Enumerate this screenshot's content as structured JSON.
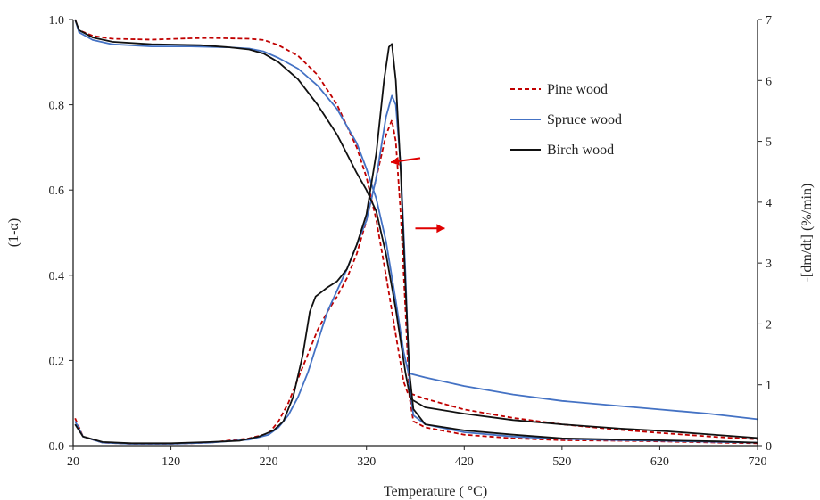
{
  "chart_data": {
    "type": "line",
    "title": "",
    "xlabel": "Temperature ( °C)",
    "ylabel_left": "(1-α)",
    "ylabel_right": "-[dm/dt]  (%/min)",
    "xlim": [
      20,
      720
    ],
    "ylim_left": [
      0,
      1.0
    ],
    "ylim_right": [
      0,
      7
    ],
    "x_ticks": [
      20,
      120,
      220,
      320,
      420,
      520,
      620,
      720
    ],
    "y_left_ticks": [
      "0.0",
      "0.2",
      "0.4",
      "0.6",
      "0.8",
      "1.0"
    ],
    "y_right_ticks": [
      "0",
      "1",
      "2",
      "3",
      "4",
      "5",
      "6",
      "7"
    ],
    "grid": false,
    "legend_position": "top-right",
    "series": [
      {
        "name": "Pine wood",
        "color": "#c00000",
        "dash": "dashed",
        "conversion": [
          [
            22,
            1.0
          ],
          [
            26,
            0.975
          ],
          [
            40,
            0.962
          ],
          [
            60,
            0.955
          ],
          [
            100,
            0.953
          ],
          [
            140,
            0.956
          ],
          [
            160,
            0.957
          ],
          [
            200,
            0.955
          ],
          [
            215,
            0.952
          ],
          [
            230,
            0.94
          ],
          [
            250,
            0.915
          ],
          [
            270,
            0.87
          ],
          [
            290,
            0.8
          ],
          [
            310,
            0.7
          ],
          [
            320,
            0.63
          ],
          [
            330,
            0.53
          ],
          [
            340,
            0.4
          ],
          [
            350,
            0.26
          ],
          [
            358,
            0.15
          ],
          [
            362,
            0.125
          ],
          [
            380,
            0.11
          ],
          [
            420,
            0.085
          ],
          [
            470,
            0.065
          ],
          [
            520,
            0.05
          ],
          [
            580,
            0.037
          ],
          [
            620,
            0.03
          ],
          [
            680,
            0.02
          ],
          [
            720,
            0.015
          ]
        ],
        "dtg": [
          [
            22,
            0.45
          ],
          [
            30,
            0.15
          ],
          [
            50,
            0.05
          ],
          [
            80,
            0.03
          ],
          [
            120,
            0.03
          ],
          [
            160,
            0.05
          ],
          [
            200,
            0.12
          ],
          [
            220,
            0.2
          ],
          [
            230,
            0.4
          ],
          [
            240,
            0.7
          ],
          [
            250,
            1.1
          ],
          [
            260,
            1.5
          ],
          [
            270,
            1.9
          ],
          [
            280,
            2.2
          ],
          [
            290,
            2.45
          ],
          [
            300,
            2.75
          ],
          [
            310,
            3.15
          ],
          [
            320,
            3.7
          ],
          [
            330,
            4.4
          ],
          [
            340,
            5.1
          ],
          [
            346,
            5.35
          ],
          [
            350,
            5.0
          ],
          [
            355,
            3.8
          ],
          [
            360,
            2.2
          ],
          [
            364,
            0.8
          ],
          [
            368,
            0.4
          ],
          [
            380,
            0.3
          ],
          [
            420,
            0.18
          ],
          [
            470,
            0.12
          ],
          [
            520,
            0.09
          ],
          [
            580,
            0.08
          ],
          [
            620,
            0.07
          ],
          [
            680,
            0.05
          ],
          [
            720,
            0.04
          ]
        ]
      },
      {
        "name": "Spruce wood",
        "color": "#4472c4",
        "dash": "solid",
        "conversion": [
          [
            22,
            1.0
          ],
          [
            26,
            0.97
          ],
          [
            40,
            0.952
          ],
          [
            60,
            0.942
          ],
          [
            100,
            0.937
          ],
          [
            140,
            0.937
          ],
          [
            180,
            0.935
          ],
          [
            200,
            0.932
          ],
          [
            215,
            0.925
          ],
          [
            230,
            0.91
          ],
          [
            250,
            0.885
          ],
          [
            270,
            0.845
          ],
          [
            290,
            0.79
          ],
          [
            310,
            0.71
          ],
          [
            320,
            0.65
          ],
          [
            330,
            0.58
          ],
          [
            340,
            0.48
          ],
          [
            350,
            0.34
          ],
          [
            358,
            0.22
          ],
          [
            363,
            0.17
          ],
          [
            380,
            0.16
          ],
          [
            420,
            0.14
          ],
          [
            470,
            0.12
          ],
          [
            520,
            0.105
          ],
          [
            570,
            0.095
          ],
          [
            620,
            0.085
          ],
          [
            670,
            0.075
          ],
          [
            720,
            0.062
          ]
        ],
        "dtg": [
          [
            22,
            0.4
          ],
          [
            30,
            0.15
          ],
          [
            50,
            0.05
          ],
          [
            80,
            0.03
          ],
          [
            120,
            0.03
          ],
          [
            160,
            0.05
          ],
          [
            200,
            0.1
          ],
          [
            220,
            0.18
          ],
          [
            230,
            0.3
          ],
          [
            240,
            0.5
          ],
          [
            250,
            0.8
          ],
          [
            260,
            1.2
          ],
          [
            270,
            1.7
          ],
          [
            280,
            2.2
          ],
          [
            290,
            2.55
          ],
          [
            300,
            2.9
          ],
          [
            310,
            3.3
          ],
          [
            320,
            3.7
          ],
          [
            330,
            4.4
          ],
          [
            340,
            5.4
          ],
          [
            346,
            5.75
          ],
          [
            350,
            5.6
          ],
          [
            355,
            4.6
          ],
          [
            360,
            2.8
          ],
          [
            364,
            1.0
          ],
          [
            368,
            0.5
          ],
          [
            380,
            0.35
          ],
          [
            420,
            0.22
          ],
          [
            470,
            0.15
          ],
          [
            520,
            0.11
          ],
          [
            580,
            0.09
          ],
          [
            620,
            0.08
          ],
          [
            680,
            0.06
          ],
          [
            720,
            0.05
          ]
        ]
      },
      {
        "name": "Birch wood",
        "color": "#111111",
        "dash": "solid",
        "conversion": [
          [
            22,
            1.0
          ],
          [
            26,
            0.975
          ],
          [
            40,
            0.958
          ],
          [
            60,
            0.948
          ],
          [
            100,
            0.942
          ],
          [
            150,
            0.94
          ],
          [
            180,
            0.935
          ],
          [
            200,
            0.93
          ],
          [
            215,
            0.92
          ],
          [
            230,
            0.9
          ],
          [
            250,
            0.86
          ],
          [
            270,
            0.8
          ],
          [
            290,
            0.73
          ],
          [
            310,
            0.64
          ],
          [
            320,
            0.6
          ],
          [
            330,
            0.55
          ],
          [
            340,
            0.45
          ],
          [
            350,
            0.32
          ],
          [
            360,
            0.17
          ],
          [
            365,
            0.11
          ],
          [
            380,
            0.09
          ],
          [
            420,
            0.075
          ],
          [
            470,
            0.06
          ],
          [
            520,
            0.05
          ],
          [
            580,
            0.04
          ],
          [
            620,
            0.035
          ],
          [
            680,
            0.025
          ],
          [
            720,
            0.018
          ]
        ],
        "dtg": [
          [
            22,
            0.35
          ],
          [
            30,
            0.15
          ],
          [
            50,
            0.06
          ],
          [
            80,
            0.04
          ],
          [
            120,
            0.04
          ],
          [
            160,
            0.06
          ],
          [
            190,
            0.08
          ],
          [
            210,
            0.15
          ],
          [
            225,
            0.25
          ],
          [
            235,
            0.4
          ],
          [
            245,
            0.8
          ],
          [
            255,
            1.5
          ],
          [
            262,
            2.2
          ],
          [
            268,
            2.45
          ],
          [
            272,
            2.5
          ],
          [
            280,
            2.6
          ],
          [
            290,
            2.7
          ],
          [
            300,
            2.9
          ],
          [
            310,
            3.3
          ],
          [
            320,
            3.8
          ],
          [
            330,
            4.8
          ],
          [
            338,
            6.0
          ],
          [
            343,
            6.55
          ],
          [
            346,
            6.6
          ],
          [
            350,
            6.0
          ],
          [
            355,
            4.5
          ],
          [
            360,
            2.6
          ],
          [
            364,
            1.2
          ],
          [
            368,
            0.6
          ],
          [
            380,
            0.35
          ],
          [
            420,
            0.25
          ],
          [
            470,
            0.18
          ],
          [
            520,
            0.12
          ],
          [
            580,
            0.1
          ],
          [
            620,
            0.09
          ],
          [
            680,
            0.07
          ],
          [
            720,
            0.05
          ]
        ]
      }
    ],
    "annotations": [
      {
        "type": "arrow",
        "direction": "left",
        "color": "#e00000",
        "axis": "left",
        "x_from": 375,
        "x_to": 345,
        "y_from": 0.675,
        "y_to": 0.665
      },
      {
        "type": "arrow",
        "direction": "right",
        "color": "#e00000",
        "axis": "left",
        "x_from": 370,
        "x_to": 400,
        "y_from": 0.51,
        "y_to": 0.51
      }
    ]
  }
}
